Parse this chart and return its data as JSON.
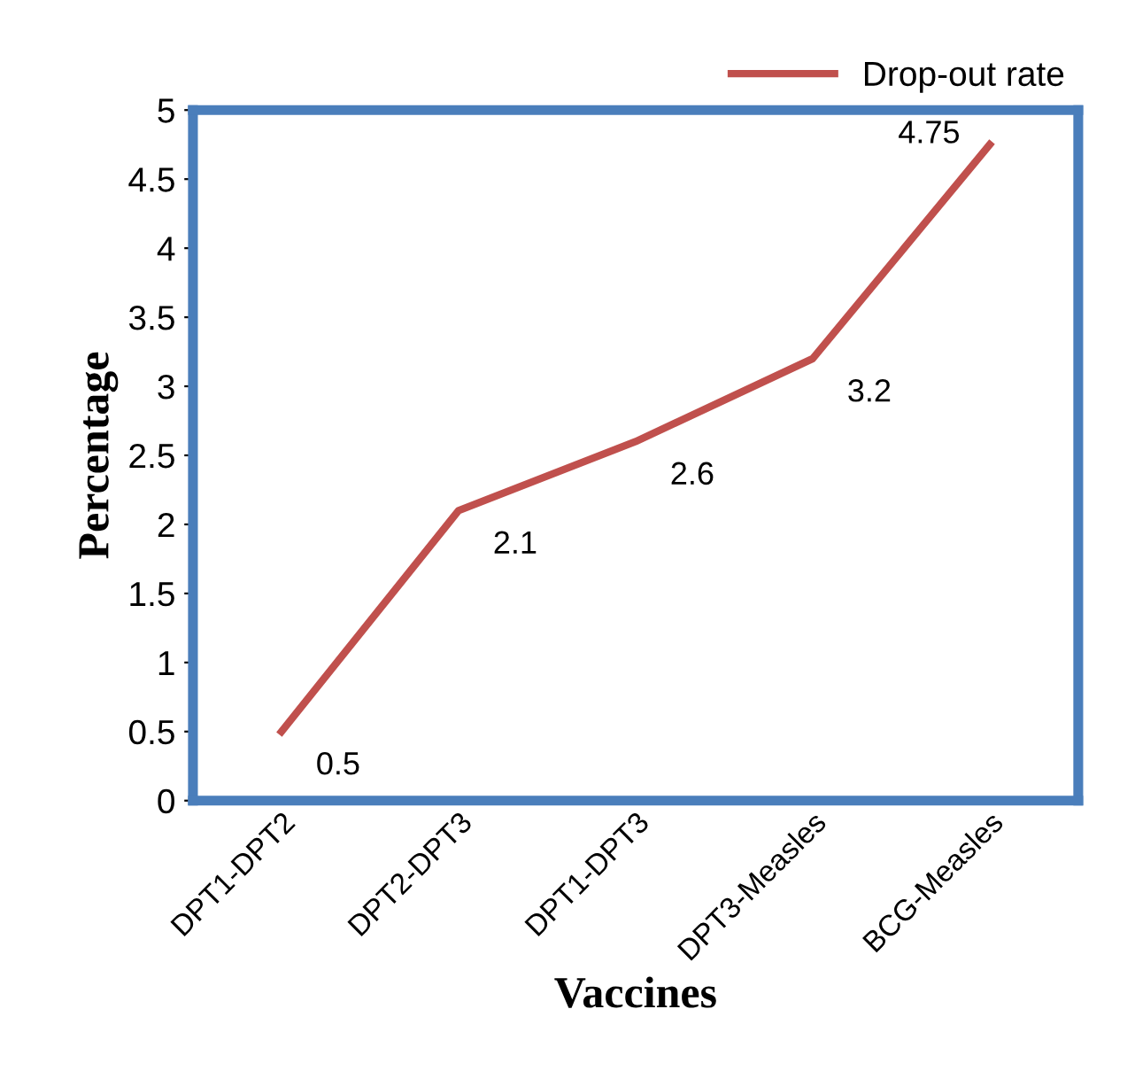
{
  "chart_data": {
    "type": "line",
    "xlabel": "Vaccines",
    "ylabel": "Percentage",
    "categories": [
      "DPT1-DPT2",
      "DPT2-DPT3",
      "DPT1-DPT3",
      "DPT3-Measles",
      "BCG-Measles"
    ],
    "series": [
      {
        "name": "Drop-out rate",
        "color": "#c0504d",
        "values": [
          0.5,
          2.1,
          2.6,
          3.2,
          4.75
        ]
      }
    ],
    "ylim": [
      0,
      5
    ],
    "yticks": [
      0,
      0.5,
      1,
      1.5,
      2,
      2.5,
      3,
      3.5,
      4,
      4.5,
      5
    ],
    "data_labels": true,
    "legend": "top right",
    "grid": false,
    "marker": "none",
    "line_style": "solid"
  }
}
